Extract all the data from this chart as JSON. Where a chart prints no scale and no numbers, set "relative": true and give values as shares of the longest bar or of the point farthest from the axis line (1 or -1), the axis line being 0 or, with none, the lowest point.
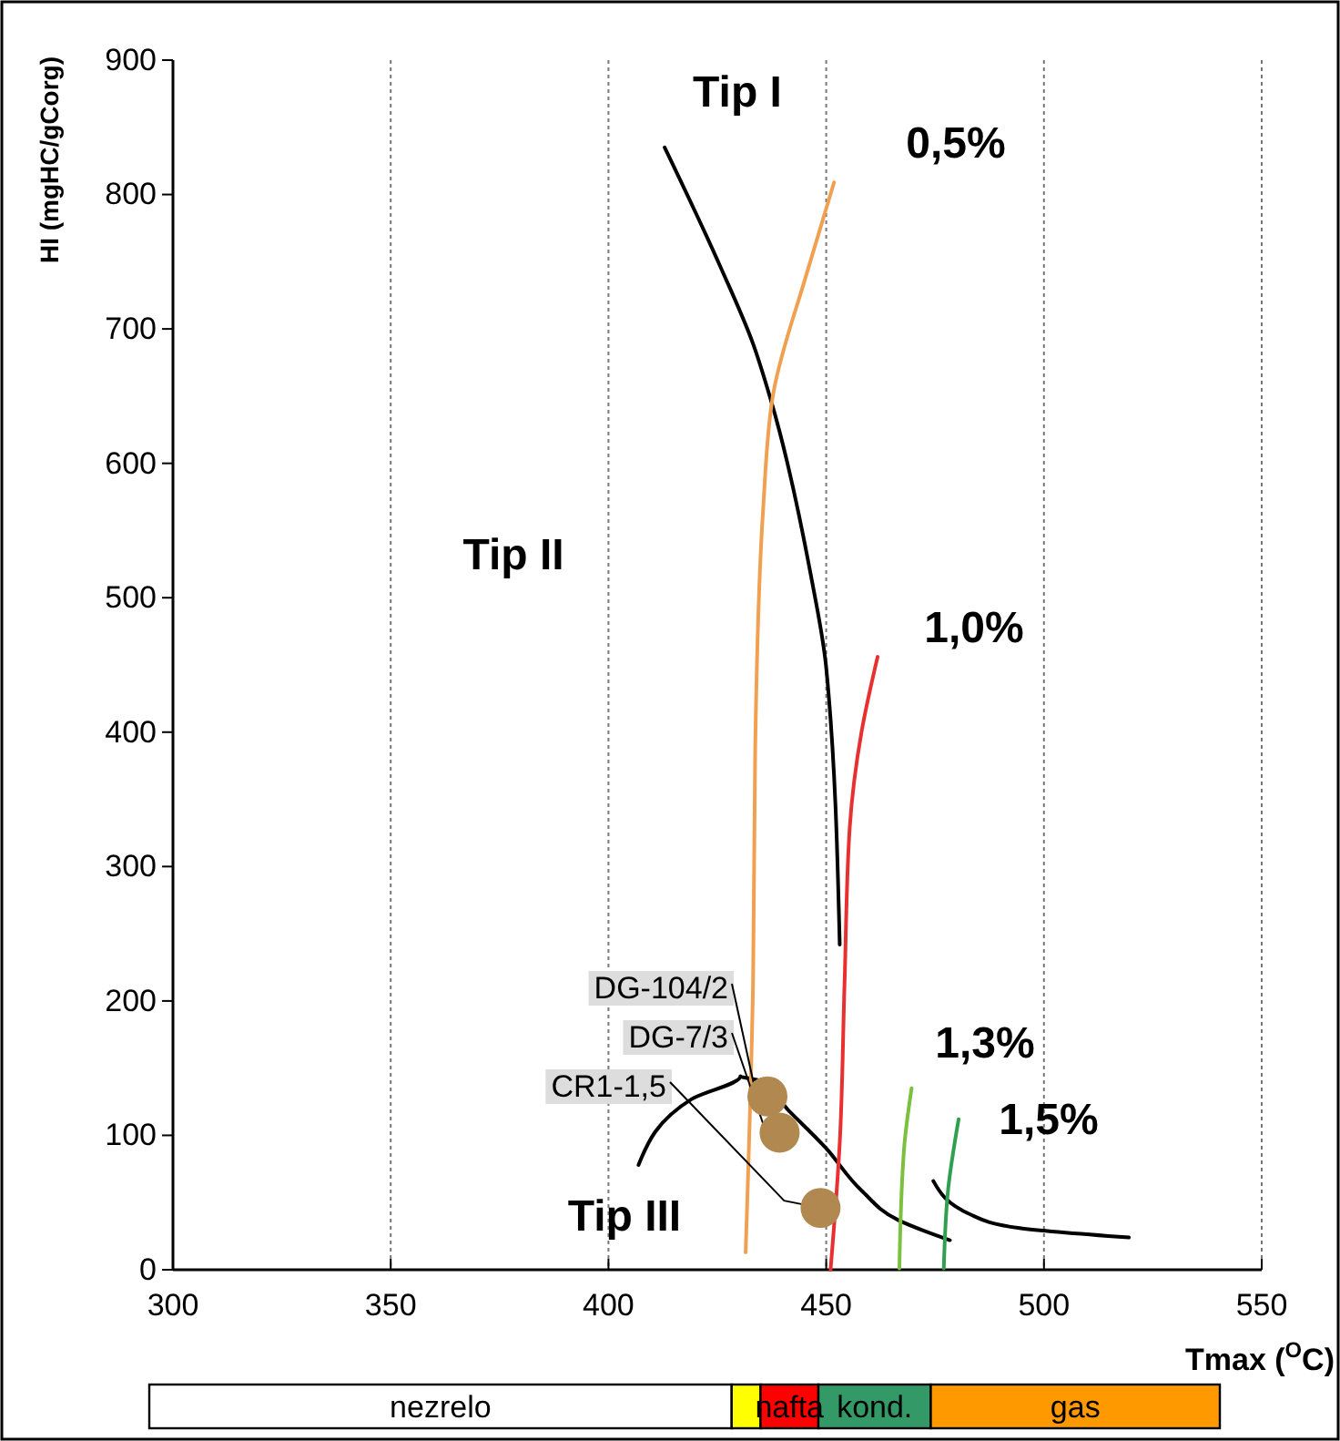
{
  "chart_data": [
    {
      "type": "line",
      "xlabel": "Tmax ($^{O}$C)",
      "ylabel": "HI (mgHC/gCorg)",
      "xlim": [
        300,
        550
      ],
      "xticks": [
        300,
        350,
        400,
        450,
        500,
        550
      ],
      "ylim": [
        0,
        900
      ],
      "yticks": [
        0,
        100,
        200,
        300,
        400,
        500,
        600,
        700,
        800,
        900
      ],
      "grid": "x",
      "marker": "none",
      "line_style": "solid",
      "series": [
        {
          "name": "Tip I",
          "color": "#000000",
          "x": [
            412.9,
            425.6,
            433.2,
            437.3,
            446.4,
            450,
            453.1
          ],
          "values": [
            835,
            747,
            689,
            647,
            518,
            448,
            242
          ]
        },
        {
          "name": "Tip III",
          "color": "#000000",
          "x": [
            406.9,
            419.1,
            430.3,
            434.4,
            441.5,
            449.8,
            458.1,
            466.5,
            478.4,
            null,
            474.6,
            483.2,
            494.4,
            519.5
          ],
          "values": [
            78,
            127,
            144,
            141,
            118,
            91,
            59,
            37,
            22,
            null,
            66,
            41,
            31,
            24
          ]
        },
        {
          "name": "0,5%",
          "color": "#f0a050",
          "x": [
            431.5,
            433.2,
            433.7,
            435.5,
            437.9,
            445.5,
            451.8
          ],
          "values": [
            13,
            213,
            389,
            565,
            653,
            741,
            809
          ]
        },
        {
          "name": "1,0%",
          "color": "#e83030",
          "x": [
            451,
            453.1,
            454.2,
            455.4,
            458.1,
            461.8
          ],
          "values": [
            0,
            94,
            212,
            329,
            400,
            456
          ]
        },
        {
          "name": "1,3%",
          "color": "#7cc040",
          "x": [
            466.8,
            467.9,
            469.6
          ],
          "values": [
            1,
            91,
            135
          ]
        },
        {
          "name": "1,5%",
          "color": "#30a050",
          "x": [
            477,
            478,
            480.4
          ],
          "values": [
            1,
            60,
            112
          ]
        },
        {
          "type": "scatter",
          "marker": "circle",
          "color": "#b08850",
          "x": [
            436.5,
            439.3,
            448.7
          ],
          "values": [
            129,
            102,
            46
          ],
          "value_labels": [
            "DG-104/2",
            "DG-7/3",
            "CR1-1,5"
          ]
        }
      ],
      "annotations": [
        "Tip II"
      ]
    },
    {
      "type": "bar",
      "orientation": "horizontal",
      "stacked": true,
      "relative": true,
      "categories": [
        null
      ],
      "series": [
        {
          "name": "nezrelo",
          "color": "#ffffff",
          "values": [
            0.544
          ]
        },
        {
          "color": "#ffff00",
          "values": [
            0.027
          ]
        },
        {
          "name": "nafta",
          "color": "#ff0000",
          "values": [
            0.054
          ]
        },
        {
          "name": "kond.",
          "color": "#339966",
          "values": [
            0.105
          ]
        },
        {
          "name": "gas",
          "color": "#ff9900",
          "values": [
            0.27
          ]
        }
      ]
    }
  ]
}
